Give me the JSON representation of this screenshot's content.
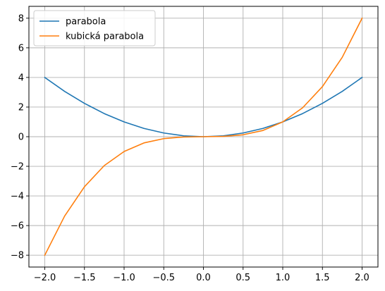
{
  "chart_data": {
    "type": "line",
    "title": "",
    "xlabel": "",
    "ylabel": "",
    "xlim": [
      -2.2,
      2.2
    ],
    "ylim": [
      -8.8,
      8.8
    ],
    "grid": true,
    "legend": "top-left",
    "xticks": [
      -2.0,
      -1.5,
      -1.0,
      -0.5,
      0.0,
      0.5,
      1.0,
      1.5,
      2.0
    ],
    "xtick_labels": [
      "−2.0",
      "−1.5",
      "−1.0",
      "−0.5",
      "0.0",
      "0.5",
      "1.0",
      "1.5",
      "2.0"
    ],
    "yticks": [
      -8,
      -6,
      -4,
      -2,
      0,
      2,
      4,
      6,
      8
    ],
    "ytick_labels": [
      "−8",
      "−6",
      "−4",
      "−2",
      "0",
      "2",
      "4",
      "6",
      "8"
    ],
    "series": [
      {
        "name": "parabola",
        "color": "#1f77b4",
        "x": [
          -2.0,
          -1.75,
          -1.5,
          -1.25,
          -1.0,
          -0.75,
          -0.5,
          -0.25,
          0.0,
          0.25,
          0.5,
          0.75,
          1.0,
          1.25,
          1.5,
          1.75,
          2.0
        ],
        "y": [
          4.0,
          3.06,
          2.25,
          1.56,
          1.0,
          0.56,
          0.25,
          0.06,
          0.0,
          0.06,
          0.25,
          0.56,
          1.0,
          1.56,
          2.25,
          3.06,
          4.0
        ]
      },
      {
        "name": "kubická parabola",
        "color": "#ff7f0e",
        "x": [
          -2.0,
          -1.75,
          -1.5,
          -1.25,
          -1.0,
          -0.75,
          -0.5,
          -0.25,
          0.0,
          0.25,
          0.5,
          0.75,
          1.0,
          1.25,
          1.5,
          1.75,
          2.0
        ],
        "y": [
          -8.0,
          -5.36,
          -3.38,
          -1.95,
          -1.0,
          -0.42,
          -0.13,
          -0.02,
          0.0,
          0.02,
          0.13,
          0.42,
          1.0,
          1.95,
          3.38,
          5.36,
          8.0
        ]
      }
    ]
  }
}
